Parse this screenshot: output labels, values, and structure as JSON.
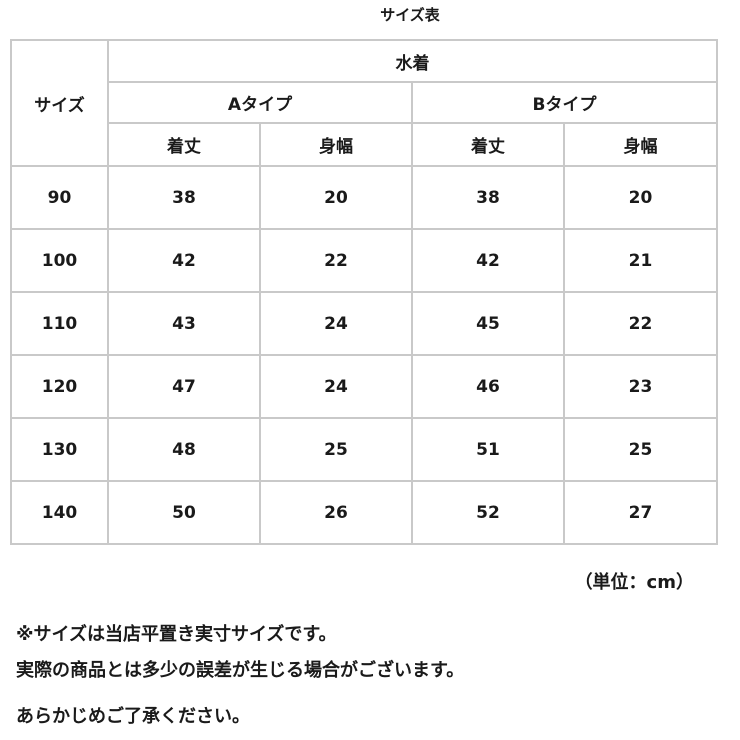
{
  "title": "サイズ表",
  "header": {
    "size_label": "サイズ",
    "group_label": "水着",
    "types": [
      "Aタイプ",
      "Bタイプ"
    ],
    "measures": [
      "着丈",
      "身幅",
      "着丈",
      "身幅"
    ]
  },
  "rows": [
    {
      "size": "90",
      "values": [
        "38",
        "20",
        "38",
        "20"
      ]
    },
    {
      "size": "100",
      "values": [
        "42",
        "22",
        "42",
        "21"
      ]
    },
    {
      "size": "110",
      "values": [
        "43",
        "24",
        "45",
        "22"
      ]
    },
    {
      "size": "120",
      "values": [
        "47",
        "24",
        "46",
        "23"
      ]
    },
    {
      "size": "130",
      "values": [
        "48",
        "25",
        "51",
        "25"
      ]
    },
    {
      "size": "140",
      "values": [
        "50",
        "26",
        "52",
        "27"
      ]
    }
  ],
  "unit": "（単位：cm）",
  "notes": [
    "※サイズは当店平置き実寸サイズです。",
    "実際の商品とは多少の誤差が生じる場合がございます。",
    "あらかじめご了承ください。"
  ]
}
